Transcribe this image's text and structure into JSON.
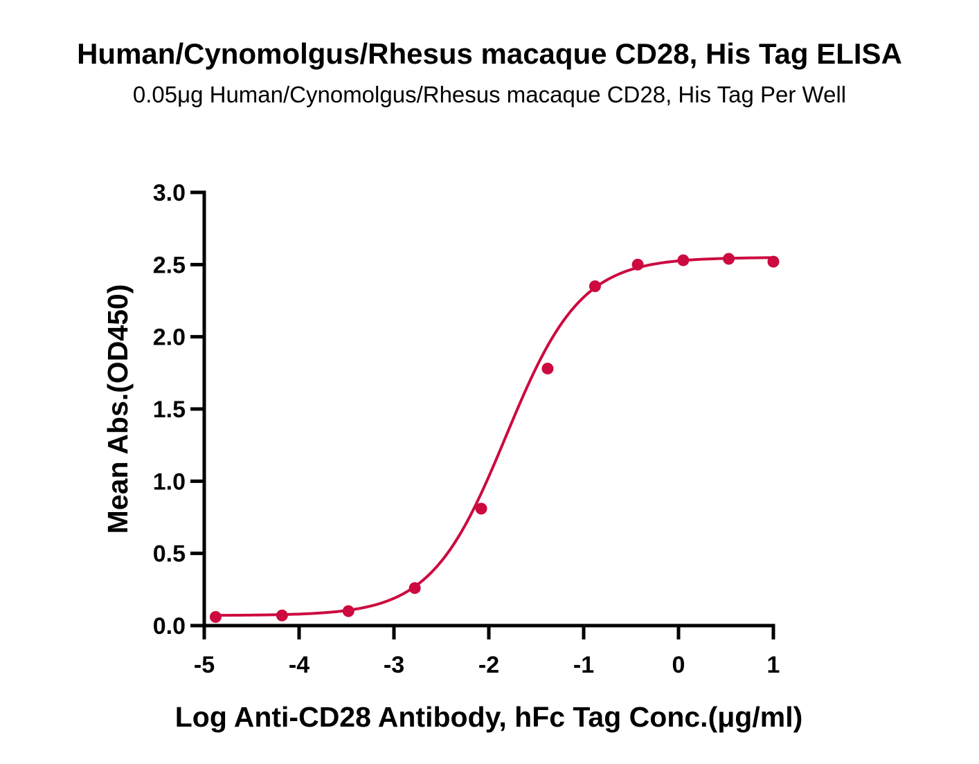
{
  "chart_data": {
    "type": "scatter",
    "title": "Human/Cynomolgus/Rhesus macaque CD28, His Tag ELISA",
    "subtitle": "0.05μg Human/Cynomolgus/Rhesus macaque CD28, His Tag Per Well",
    "xlabel": "Log Anti-CD28 Antibody, hFc Tag Conc.(μg/ml)",
    "ylabel": "Mean Abs.(OD450)",
    "xlim": [
      -5,
      1
    ],
    "ylim": [
      0,
      3
    ],
    "x_ticks": [
      -5,
      -4,
      -3,
      -2,
      -1,
      0,
      1
    ],
    "x_tick_labels": [
      "-5",
      "-4",
      "-3",
      "-2",
      "-1",
      "0",
      "1"
    ],
    "y_ticks": [
      0,
      0.5,
      1,
      1.5,
      2,
      2.5,
      3
    ],
    "y_tick_labels": [
      "0.0",
      "0.5",
      "1.0",
      "1.5",
      "2.0",
      "2.5",
      "3.0"
    ],
    "grid": false,
    "legend": "none",
    "color": "#cc0a3f",
    "series": [
      {
        "x": [
          -4.88,
          -4.18,
          -3.48,
          -2.78,
          -2.08,
          -1.38,
          -0.88,
          -0.43,
          0.05,
          0.53,
          1.0
        ],
        "y": [
          0.06,
          0.07,
          0.1,
          0.26,
          0.81,
          1.78,
          2.35,
          2.5,
          2.53,
          2.54,
          2.52
        ]
      }
    ],
    "fit": {
      "model": "4PL",
      "bottom": 0.07,
      "top": 2.55,
      "log_ec50": -1.82,
      "hill": 1.1,
      "x_range": [
        -4.88,
        1.0
      ]
    }
  }
}
